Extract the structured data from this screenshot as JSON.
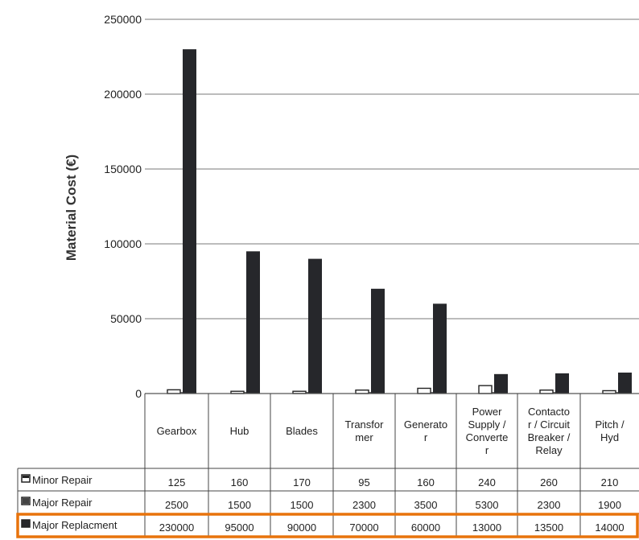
{
  "chart_data": {
    "type": "bar",
    "ylabel": "Material Cost (€)",
    "ylim": [
      0,
      250000
    ],
    "yticks": [
      0,
      50000,
      100000,
      150000,
      200000,
      250000
    ],
    "yticks_text": [
      "0",
      "50000",
      "100000",
      "150000",
      "200000",
      "250000"
    ],
    "grid": true,
    "categories": [
      "Gearbox",
      "Hub",
      "Blades",
      "Transformer",
      "Generator",
      "Power Supply / Converter",
      "Contactor / Circuit Breaker / Relay",
      "Pitch / Hyd"
    ],
    "category_lines": [
      [
        "Gearbox"
      ],
      [
        "Hub"
      ],
      [
        "Blades"
      ],
      [
        "Transfor",
        "mer"
      ],
      [
        "Generato",
        "r"
      ],
      [
        "Power",
        "Supply /",
        "Converte",
        "r"
      ],
      [
        "Contacto",
        "r / Circuit",
        "Breaker /",
        "Relay"
      ],
      [
        "Pitch /",
        "Hyd"
      ]
    ],
    "series": [
      {
        "name": "Minor Repair",
        "values": [
          125,
          160,
          170,
          95,
          160,
          240,
          260,
          210
        ],
        "text": [
          "125",
          "160",
          "170",
          "95",
          "160",
          "240",
          "260",
          "210"
        ]
      },
      {
        "name": "Major Repair",
        "values": [
          2500,
          1500,
          1500,
          2300,
          3500,
          5300,
          2300,
          1900
        ],
        "text": [
          "2500",
          "1500",
          "1500",
          "2300",
          "3500",
          "5300",
          "2300",
          "1900"
        ]
      },
      {
        "name": "Major Replacment",
        "values": [
          230000,
          95000,
          90000,
          70000,
          60000,
          13000,
          13500,
          14000
        ],
        "text": [
          "230000",
          "95000",
          "90000",
          "70000",
          "60000",
          "13000",
          "13500",
          "14000"
        ]
      }
    ],
    "highlight_row": "Major Replacment",
    "colors": {
      "minor": "#ffffff",
      "major_repair": "#ffffff",
      "replacement": "#26272b",
      "highlight": "#e8730c",
      "grid": "#7a7a7a"
    }
  }
}
